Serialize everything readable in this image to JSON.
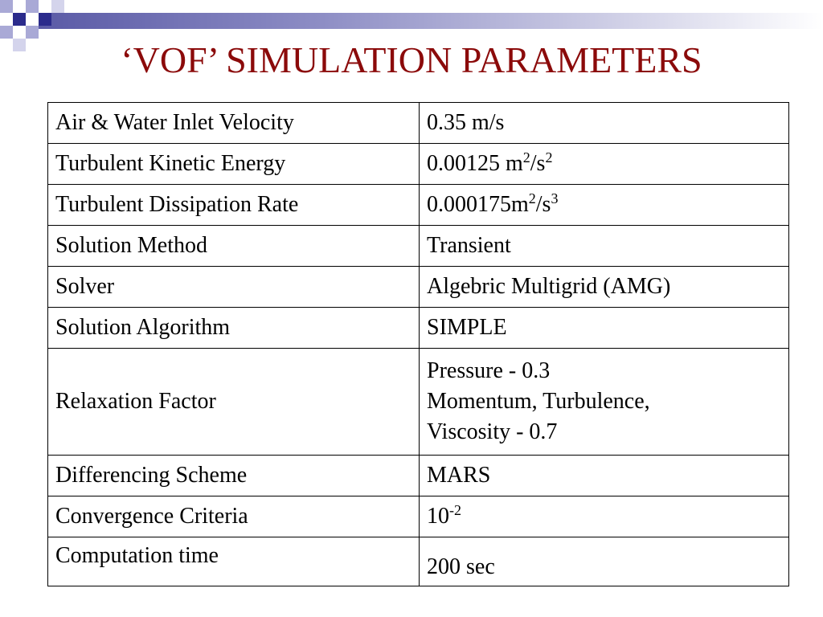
{
  "slide": {
    "title": "‘VOF’ SIMULATION PARAMETERS"
  },
  "table": {
    "rows": [
      {
        "label": "Air & Water Inlet Velocity",
        "value": "0.35 m/s"
      },
      {
        "label": "Turbulent Kinetic Energy",
        "value_parts": [
          "0.00125 m",
          "2",
          "/s",
          "2"
        ]
      },
      {
        "label": "Turbulent Dissipation Rate",
        "value_parts": [
          "0.000175m",
          "2",
          "/s",
          "3"
        ]
      },
      {
        "label": "Solution Method",
        "value": "Transient"
      },
      {
        "label": "Solver",
        "value": "Algebric Multigrid (AMG)"
      },
      {
        "label": "Solution Algorithm",
        "value": "SIMPLE"
      },
      {
        "label": "Relaxation Factor",
        "value_lines": [
          "Pressure - 0.3",
          "Momentum, Turbulence,",
          "Viscosity - 0.7"
        ]
      },
      {
        "label": "Differencing Scheme",
        "value": "MARS"
      },
      {
        "label": "Convergence Criteria",
        "value_parts": [
          "10",
          "-2"
        ]
      },
      {
        "label": "Computation time",
        "value": "200 sec"
      }
    ]
  },
  "colors": {
    "title": "#8b0a0a",
    "deco_dark": "#2b2b8c",
    "deco_light": "#a9a9d6"
  }
}
